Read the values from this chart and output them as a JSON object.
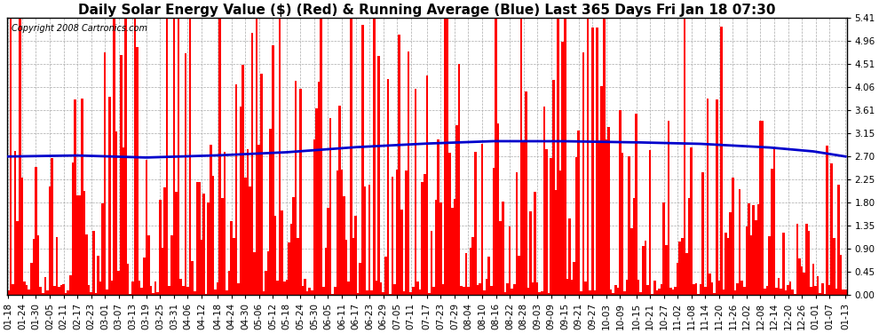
{
  "title": "Daily Solar Energy Value ($) (Red) & Running Average (Blue) Last 365 Days Fri Jan 18 07:30",
  "copyright_text": "Copyright 2008 Cartronics.com",
  "ylim": [
    0.0,
    5.41
  ],
  "yticks": [
    0.0,
    0.45,
    0.9,
    1.35,
    1.8,
    2.25,
    2.7,
    3.15,
    3.61,
    4.06,
    4.51,
    4.96,
    5.41
  ],
  "bar_color": "#ff0000",
  "avg_color": "#0000cc",
  "bg_color": "#ffffff",
  "grid_color": "#aaaaaa",
  "title_fontsize": 11,
  "copyright_fontsize": 7,
  "tick_fontsize": 7.5,
  "x_labels": [
    "01-18",
    "01-24",
    "01-30",
    "02-05",
    "02-11",
    "02-17",
    "02-23",
    "03-01",
    "03-07",
    "03-13",
    "03-19",
    "03-25",
    "03-31",
    "04-06",
    "04-12",
    "04-18",
    "04-24",
    "04-30",
    "05-06",
    "05-12",
    "05-18",
    "05-24",
    "05-30",
    "06-05",
    "06-11",
    "06-17",
    "06-23",
    "06-29",
    "07-05",
    "07-11",
    "07-17",
    "07-23",
    "07-29",
    "08-04",
    "08-10",
    "08-16",
    "08-22",
    "08-28",
    "09-03",
    "09-09",
    "09-15",
    "09-21",
    "09-27",
    "10-03",
    "10-09",
    "10-15",
    "10-21",
    "10-27",
    "11-02",
    "11-08",
    "11-14",
    "11-20",
    "11-26",
    "12-02",
    "12-08",
    "12-14",
    "12-20",
    "12-26",
    "01-01",
    "01-07",
    "01-13"
  ],
  "avg_values_key_points": [
    [
      0,
      2.7
    ],
    [
      30,
      2.72
    ],
    [
      60,
      2.68
    ],
    [
      90,
      2.72
    ],
    [
      120,
      2.78
    ],
    [
      150,
      2.88
    ],
    [
      180,
      2.95
    ],
    [
      210,
      3.0
    ],
    [
      240,
      3.0
    ],
    [
      270,
      2.98
    ],
    [
      300,
      2.95
    ],
    [
      330,
      2.88
    ],
    [
      350,
      2.8
    ],
    [
      364,
      2.7
    ]
  ]
}
